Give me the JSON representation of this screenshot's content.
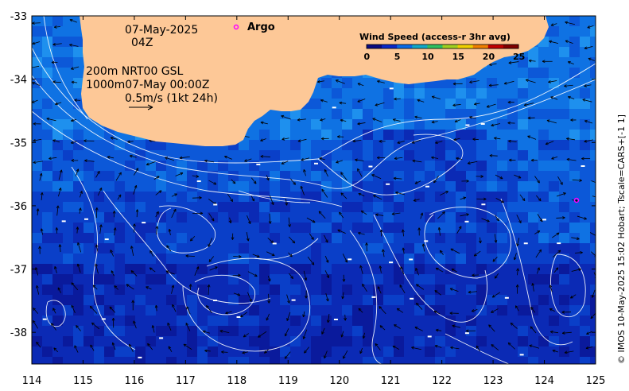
{
  "map": {
    "region_lon": [
      114,
      125
    ],
    "region_lat": [
      -38.5,
      -33
    ],
    "lon_ticks": [
      "114",
      "115",
      "116",
      "117",
      "118",
      "119",
      "120",
      "121",
      "122",
      "123",
      "124",
      "125"
    ],
    "lat_ticks": [
      "-33",
      "-34",
      "-35",
      "-36",
      "-37",
      "-38"
    ],
    "land_color": "#fdc897",
    "ocean_colors": [
      "#0a1a9c",
      "#0b2ab5",
      "#0a3fc8",
      "#0c58d8",
      "#0f72e3",
      "#1e90ee"
    ]
  },
  "overlay": {
    "date": "07-May-2025",
    "time": "04Z",
    "depth_line1": "200m  NRT00 GSL",
    "depth_line2": "1000m07-May 00:00Z",
    "scale_text": "0.5m/s (1kt 24h)"
  },
  "argo": {
    "label": "Argo",
    "marker_color": "#ff00ff"
  },
  "legend": {
    "title": "Wind Speed (access-r 3hr avg)",
    "ticks": [
      "0",
      "5",
      "10",
      "15",
      "20",
      "25"
    ],
    "colors": [
      "#0a0a80",
      "#0a28c8",
      "#0a6ae6",
      "#10a8c8",
      "#30c060",
      "#a0d020",
      "#f0d000",
      "#f08000",
      "#c00000",
      "#800000"
    ]
  },
  "credit": "© IMOS 10-May-2025 15:02 Hobart; Tscale=CARS+[-1 1]"
}
